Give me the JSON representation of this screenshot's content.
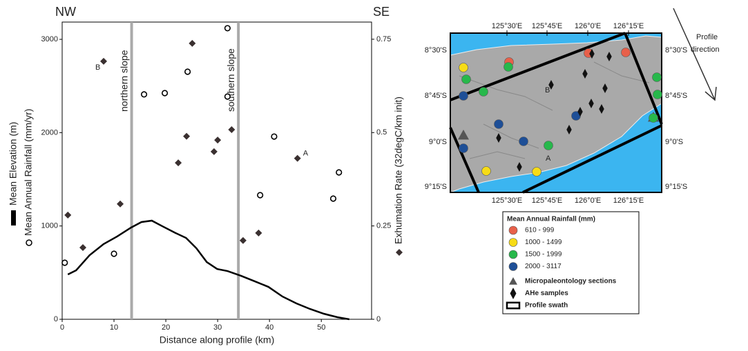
{
  "chart_data": {
    "type": "scatter",
    "corner_labels": [
      "NW",
      "SE"
    ],
    "xlabel": "Distance along profile (km)",
    "xlim": [
      0,
      59.7
    ],
    "xticks": [
      0,
      10,
      20,
      30,
      40,
      50
    ],
    "ylim": [
      0,
      3185
    ],
    "yticks": [
      0,
      1000,
      2000,
      3000
    ],
    "y2lim": [
      0,
      0.796
    ],
    "y2ticks": [
      0,
      0.25,
      0.5,
      0.75
    ],
    "annotations": [
      {
        "text": "northern slope",
        "x": 13.4
      },
      {
        "text": "southern slope",
        "x": 34.0
      }
    ],
    "series": [
      {
        "name": "Mean Elevation (m)",
        "marker": "line",
        "color": "#000000",
        "x": [
          1.1,
          2.7,
          5.3,
          8.0,
          10.6,
          13.3,
          15.3,
          17.3,
          19.3,
          21.9,
          23.9,
          25.9,
          27.9,
          29.9,
          31.9,
          34.5,
          37.2,
          39.8,
          42.5,
          45.2,
          47.8,
          50.5,
          53.1,
          55.4
        ],
        "values": [
          480,
          525,
          687,
          806,
          887,
          983,
          1042,
          1057,
          998,
          924,
          872,
          761,
          613,
          539,
          517,
          466,
          406,
          347,
          244,
          170,
          111,
          59,
          22,
          0
        ]
      },
      {
        "name": "Mean Annual Rainfall (mm/yr)",
        "marker": "circle",
        "color": "#000000",
        "x": [
          0.5,
          10.0,
          15.8,
          19.8,
          24.2,
          31.9,
          31.9,
          38.2,
          40.9,
          52.3,
          53.4
        ],
        "values": [
          606,
          702,
          2410,
          2424,
          2653,
          3119,
          2387,
          1330,
          1958,
          1293,
          1574
        ]
      },
      {
        "name": "Exhumation Rate (32degC/km init)",
        "marker": "diamond",
        "color": "#3a3030",
        "axis": "y2",
        "x": [
          1.1,
          4.0,
          8.0,
          11.2,
          22.4,
          24.0,
          25.1,
          29.3,
          30.0,
          32.7,
          34.9,
          37.9,
          45.4
        ],
        "values": [
          0.279,
          0.192,
          0.691,
          0.309,
          0.419,
          0.49,
          0.739,
          0.449,
          0.48,
          0.508,
          0.211,
          0.231,
          0.431
        ],
        "point_labels": [
          null,
          null,
          "B",
          null,
          null,
          null,
          null,
          null,
          null,
          null,
          null,
          null,
          "A"
        ]
      }
    ]
  },
  "map": {
    "lon_labels": [
      "125°30'E",
      "125°45'E",
      "126°0'E",
      "126°15'E"
    ],
    "lat_labels": [
      "8°30'S",
      "8°45'S",
      "9°0'S",
      "9°15'S"
    ],
    "site_labels": [
      "A",
      "B"
    ],
    "direction_label": "Profile direction",
    "legend": {
      "title": "Mean Annual Rainfall (mm)",
      "items": [
        {
          "name": "610 - 999",
          "shape": "circle",
          "color": "#e8604a"
        },
        {
          "name": "1000 - 1499",
          "shape": "circle",
          "color": "#f7dc16"
        },
        {
          "name": "1500 - 1999",
          "shape": "circle",
          "color": "#27b84b"
        },
        {
          "name": "2000 - 3117",
          "shape": "circle",
          "color": "#1e4f97"
        },
        {
          "name": "Micropaleontology sections",
          "shape": "triangle",
          "color": "#555555"
        },
        {
          "name": "AHe samples",
          "shape": "diamond",
          "color": "#111111"
        },
        {
          "name": "Profile swath",
          "shape": "rect",
          "color": "#000000"
        }
      ]
    }
  }
}
